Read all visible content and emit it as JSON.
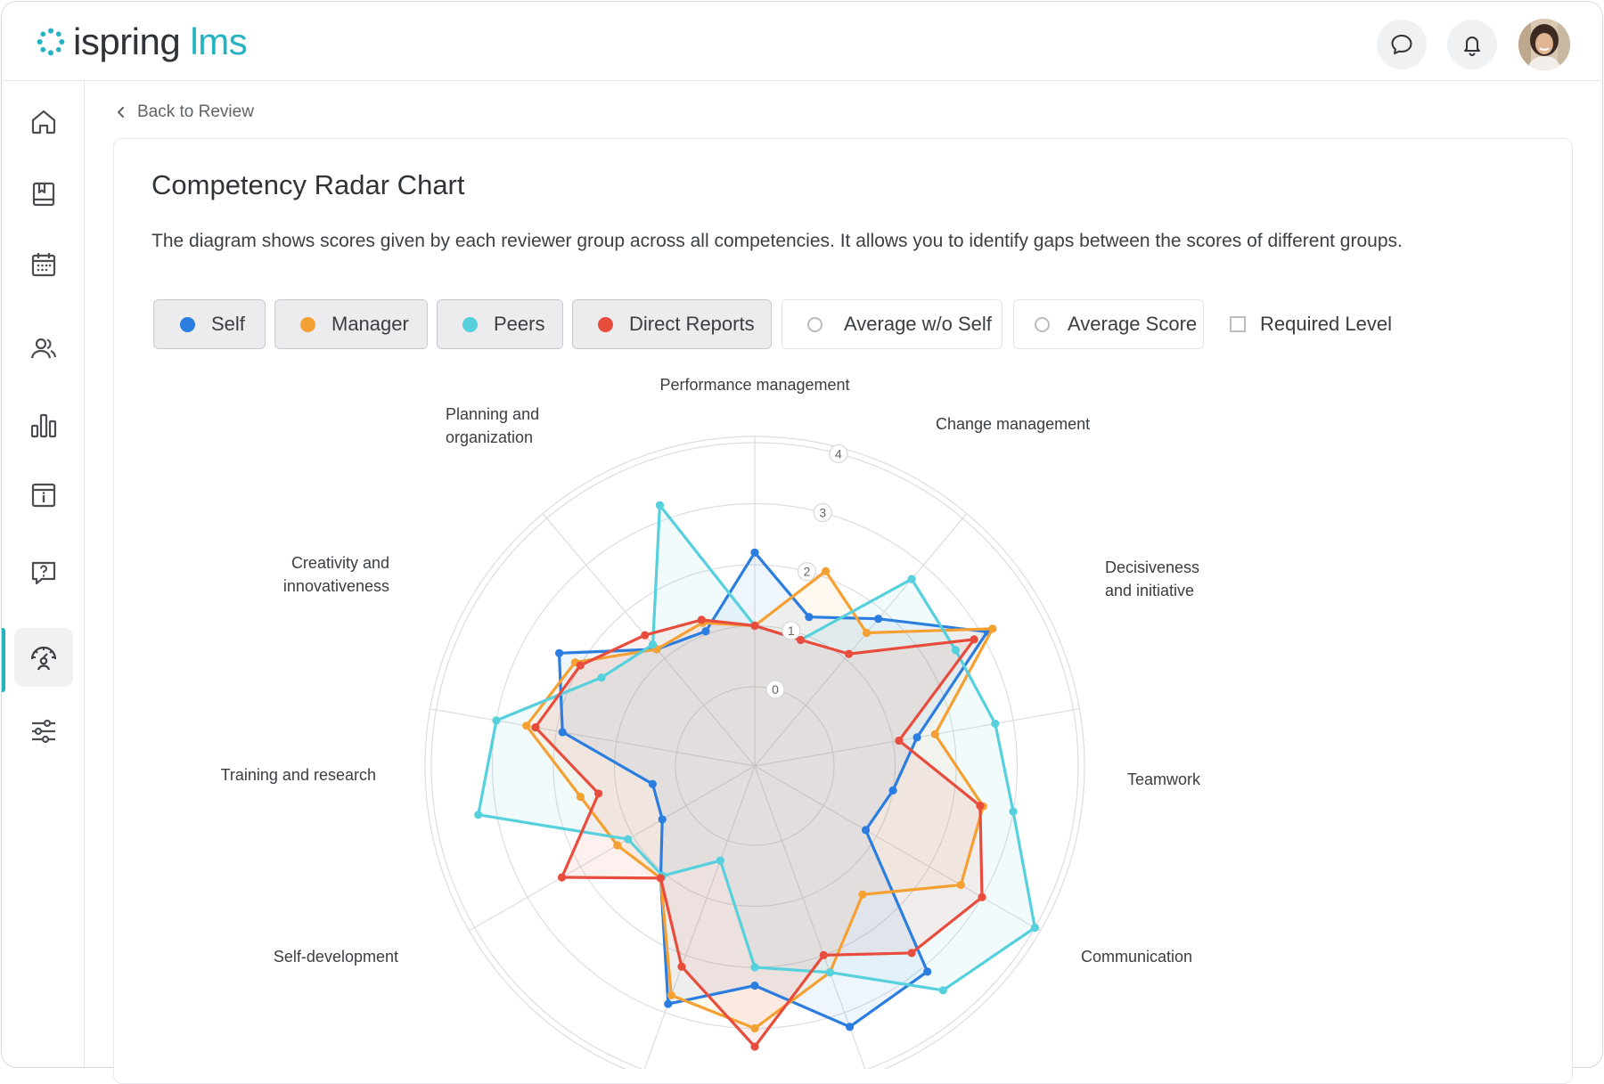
{
  "app": {
    "logo_primary": "ispring",
    "logo_secondary": "lms"
  },
  "header": {
    "chat_icon": "chat-bubble-icon",
    "notify_icon": "bell-icon"
  },
  "sidebar": {
    "items": [
      {
        "icon": "home-icon"
      },
      {
        "icon": "book-icon"
      },
      {
        "icon": "calendar-icon"
      },
      {
        "icon": "users-icon"
      },
      {
        "icon": "bar-chart-icon"
      },
      {
        "icon": "info-book-icon"
      },
      {
        "icon": "question-icon"
      },
      {
        "icon": "performance-review-icon",
        "active": true
      },
      {
        "icon": "sliders-icon"
      }
    ]
  },
  "nav": {
    "back_label": "Back to Review"
  },
  "page": {
    "title": "Competency Radar Chart",
    "description": "The diagram shows scores given by each reviewer group across all competencies. It allows you to identify gaps between the scores of different groups."
  },
  "legend": [
    {
      "label": "Self",
      "color": "#2b7de0",
      "state": "on"
    },
    {
      "label": "Manager",
      "color": "#f5a033",
      "state": "on"
    },
    {
      "label": "Peers",
      "color": "#55d0dc",
      "state": "on"
    },
    {
      "label": "Direct Reports",
      "color": "#e84c3d",
      "state": "on"
    },
    {
      "label": "Average w/o Self",
      "state": "off"
    },
    {
      "label": "Average Score",
      "state": "off"
    },
    {
      "label": "Required Level",
      "state": "off"
    }
  ],
  "chart_data": {
    "type": "radar",
    "title": "Competency Radar Chart",
    "axes": [
      "Performance management",
      "Change management",
      "Decisiveness and initiative",
      "Teamwork",
      "Communication",
      "Self-development",
      "Training and research",
      "Creativity and innovativeness",
      "Planning and organization"
    ],
    "axis_line_breaks": {
      "Decisiveness and initiative": [
        "Decisiveness",
        "and initiative"
      ],
      "Creativity and innovativeness": [
        "Creativity and",
        "innovativeness"
      ],
      "Planning and organization": [
        "Planning and",
        "organization"
      ]
    },
    "ticks": [
      0,
      1,
      2,
      3,
      4
    ],
    "ylim": [
      0,
      4
    ],
    "series": [
      {
        "name": "Self",
        "color": "#2b7de0",
        "values": [
          2.2,
          1.3,
          1.85,
          3.1,
          1.4,
          1.0,
          0.8,
          3.1,
          3.25,
          2.3,
          2.85,
          1.1,
          0.45,
          0.4,
          1.9,
          2.4,
          1.2,
          1.05
        ]
      },
      {
        "name": "Manager",
        "color": "#f5a033",
        "values": [
          1.0,
          2.1,
          1.55,
          3.2,
          1.7,
          2.5,
          2.6,
          1.45,
          2.3,
          3.0,
          2.7,
          1.1,
          1.3,
          1.6,
          2.5,
          2.1,
          1.2,
          1.2
        ]
      },
      {
        "name": "Peers",
        "color": "#55d0dc",
        "values": [
          1.0,
          0.9,
          2.7,
          2.5,
          2.7,
          3.0,
          4.0,
          3.5,
          2.3,
          2.0,
          0.35,
          1.05,
          1.1,
          3.3,
          3.0,
          1.6,
          1.3,
          3.25
        ]
      },
      {
        "name": "Direct Reports",
        "color": "#e84c3d",
        "values": [
          1.0,
          0.9,
          1.1,
          2.85,
          1.1,
          2.45,
          3.0,
          2.7,
          2.0,
          3.3,
          2.2,
          1.1,
          2.35,
          1.3,
          2.35,
          2.0,
          1.5,
          1.25
        ]
      }
    ],
    "note": "Each series is plotted at 18 evenly spaced directions (axes plus midpoints), starting at Performance management and going clockwise."
  }
}
